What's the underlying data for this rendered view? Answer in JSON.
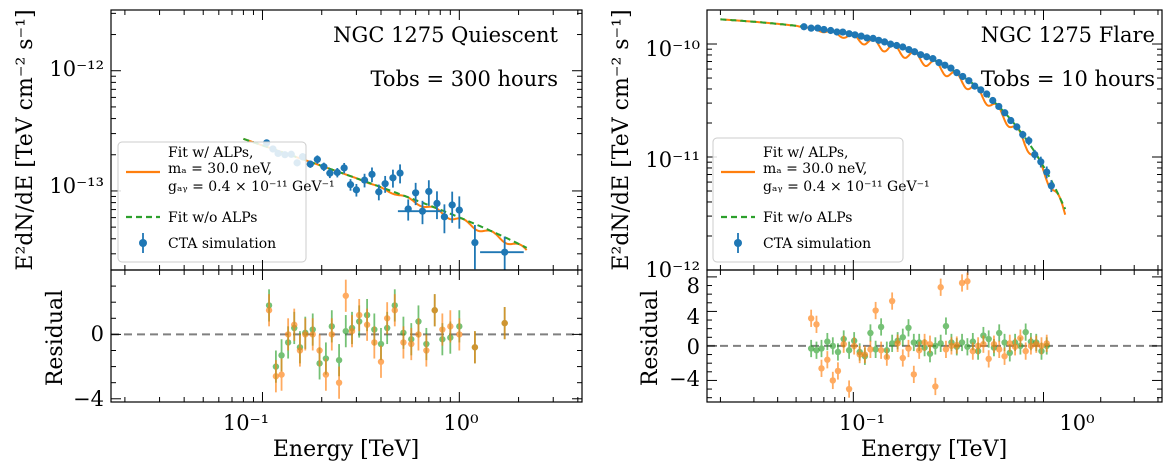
{
  "figure": {
    "x_label": "Energy [TeV]",
    "y_label_top": "E²dN/dE [TeV cm⁻² s⁻¹]",
    "y_label_bottom": "Residual",
    "x_tick_labels": [
      "10⁻¹",
      "10⁰"
    ]
  },
  "panels": [
    {
      "title": "NGC 1275 Quiescent",
      "tobs_label": "Tobs = 300 hours",
      "y_tick_labels": [
        "10⁻¹²",
        "10⁻¹³"
      ],
      "residual_tick_labels": [
        "0",
        "−4"
      ],
      "legend": {
        "alp_fit_lines": [
          "Fit w/ ALPs,",
          "mₐ = 30.0 neV,",
          "gₐᵧ = 0.4 × 10⁻¹¹ GeV⁻¹"
        ],
        "no_alp_fit": "Fit w/o ALPs",
        "simulation": "CTA simulation"
      }
    },
    {
      "title": "NGC 1275 Flare",
      "tobs_label": "Tobs = 10 hours",
      "y_tick_labels": [
        "10⁻¹⁰",
        "10⁻¹¹",
        "10⁻¹²"
      ],
      "residual_tick_labels": [
        "8",
        "4",
        "0",
        "−4"
      ],
      "legend": {
        "alp_fit_lines": [
          "Fit w/ ALPs,",
          "mₐ = 30.0 neV,",
          "gₐᵧ = 0.4 × 10⁻¹¹ GeV⁻¹"
        ],
        "no_alp_fit": "Fit w/o ALPs",
        "simulation": "CTA simulation"
      }
    }
  ],
  "colors": {
    "alp_fit": "#ff7f0e",
    "no_alp_fit": "#2ca02c",
    "simulation": "#1f77b4",
    "zero_line": "#808080"
  },
  "chart_data": [
    {
      "type": "scatter",
      "x_scale": "log",
      "y_scale": "log",
      "xlim": [
        0.017,
        4.2
      ],
      "ylim": [
        2.2e-14,
        3.2e-12
      ],
      "residual_ylim": [
        -4.2,
        4.0
      ],
      "model": {
        "norm": 1e-13,
        "e_ref": 0.5,
        "index": 2.55,
        "cutoff": 8.0
      },
      "alp_model": {
        "amplitude": 0.1,
        "oscillations": 3.0,
        "onset": 0.3
      },
      "x_range_curve": [
        0.08,
        2.2
      ],
      "series": [
        {
          "name": "CTA simulation",
          "x": [
            0.105,
            0.113,
            0.12,
            0.13,
            0.14,
            0.15,
            0.16,
            0.175,
            0.19,
            0.205,
            0.22,
            0.24,
            0.26,
            0.28,
            0.3,
            0.33,
            0.36,
            0.39,
            0.42,
            0.46,
            0.5,
            0.55,
            0.6,
            0.65,
            0.7,
            0.77,
            0.84,
            0.92,
            1.0,
            1.2,
            1.7
          ],
          "y_rel": [
            1.08,
            1.0,
            0.95,
            0.97,
            1.02,
            0.9,
            1.05,
            0.96,
            1.1,
            1.0,
            0.92,
            0.98,
            1.12,
            0.85,
            0.8,
            1.02,
            1.2,
            0.9,
            1.1,
            1.3,
            1.5,
            0.8,
            1.15,
            0.85,
            1.3,
            1.1,
            0.9,
            1.2,
            1.15,
            0.7,
            0.75
          ],
          "x_err": 0.04,
          "y_err_rel": [
            0.05,
            0.05,
            0.05,
            0.06,
            0.06,
            0.06,
            0.07,
            0.07,
            0.08,
            0.08,
            0.09,
            0.09,
            0.1,
            0.11,
            0.12,
            0.13,
            0.14,
            0.15,
            0.16,
            0.17,
            0.18,
            0.2,
            0.21,
            0.22,
            0.24,
            0.26,
            0.27,
            0.29,
            0.3,
            0.4,
            0.35
          ],
          "wide_bins": [
            0.65,
            1.7
          ]
        }
      ],
      "residuals": {
        "alp": {
          "x": [
            0.108,
            0.117,
            0.125,
            0.135,
            0.145,
            0.155,
            0.165,
            0.18,
            0.195,
            0.21,
            0.225,
            0.245,
            0.265,
            0.285,
            0.31,
            0.34,
            0.37,
            0.4,
            0.43,
            0.47,
            0.52,
            0.57,
            0.62,
            0.68,
            0.75,
            0.82,
            0.9,
            1.0,
            1.2,
            1.7
          ],
          "y": [
            1.5,
            -2.6,
            -2.5,
            0.0,
            0.6,
            -1.0,
            0.0,
            0.0,
            -1.0,
            -2.5,
            0.0,
            -3.0,
            2.4,
            0.2,
            1.2,
            0.6,
            -0.5,
            -1.7,
            1.0,
            1.5,
            -0.5,
            -0.6,
            0.0,
            -1.0,
            1.5,
            0.3,
            0.5,
            0.0,
            -0.8,
            0.7
          ]
        },
        "no_alp": {
          "x": [
            0.108,
            0.117,
            0.125,
            0.135,
            0.145,
            0.155,
            0.165,
            0.18,
            0.195,
            0.21,
            0.225,
            0.245,
            0.265,
            0.285,
            0.31,
            0.34,
            0.37,
            0.4,
            0.43,
            0.47,
            0.52,
            0.57,
            0.62,
            0.68,
            0.75,
            0.82,
            0.9,
            1.0,
            1.2,
            1.7
          ],
          "y": [
            1.8,
            -2.0,
            -1.3,
            -0.5,
            0.4,
            -0.8,
            0.1,
            0.3,
            -1.8,
            -1.5,
            0.5,
            -1.6,
            0.2,
            0.4,
            0.8,
            1.2,
            0.3,
            -0.6,
            0.4,
            1.8,
            0.1,
            -0.3,
            0.8,
            -0.6,
            1.5,
            -0.3,
            -0.2,
            0.5,
            -0.8,
            0.7
          ]
        },
        "y_err": 1.0
      }
    },
    {
      "type": "scatter",
      "x_scale": "log",
      "y_scale": "log",
      "xlim": [
        0.017,
        4.2
      ],
      "ylim": [
        1e-12,
        2e-10
      ],
      "residual_ylim": [
        -6.5,
        8.8
      ],
      "model": {
        "norm": 1.75e-10,
        "e_ref": 0.02,
        "index": 2.05,
        "cutoff": 0.35
      },
      "alp_model": {
        "amplitude": 0.18,
        "oscillations": 4.0,
        "onset": 0.05
      },
      "x_range_curve": [
        0.02,
        1.3
      ],
      "series": [
        {
          "name": "CTA simulation",
          "x": [
            0.055,
            0.06,
            0.065,
            0.07,
            0.076,
            0.082,
            0.088,
            0.095,
            0.102,
            0.11,
            0.118,
            0.127,
            0.136,
            0.146,
            0.157,
            0.169,
            0.182,
            0.196,
            0.21,
            0.226,
            0.243,
            0.262,
            0.282,
            0.303,
            0.326,
            0.35,
            0.376,
            0.405,
            0.435,
            0.468,
            0.503,
            0.541,
            0.582,
            0.626,
            0.673,
            0.724,
            0.778,
            0.837,
            0.9,
            0.968,
            1.04,
            1.1
          ],
          "y_rel": [
            1.0,
            0.99,
            1.01,
            1.0,
            1.0,
            0.99,
            1.01,
            1.0,
            1.0,
            1.0,
            0.99,
            1.01,
            1.0,
            1.0,
            0.99,
            1.0,
            1.01,
            1.0,
            1.0,
            0.99,
            1.0,
            1.02,
            1.0,
            1.01,
            1.02,
            1.0,
            1.0,
            1.0,
            0.98,
            1.0,
            1.02,
            1.0,
            1.0,
            1.0,
            0.98,
            1.0,
            1.0,
            1.05,
            0.95,
            1.0,
            1.0,
            0.9
          ],
          "x_err": 0.0,
          "y_err_rel": [
            0.02,
            0.02,
            0.02,
            0.02,
            0.02,
            0.02,
            0.02,
            0.02,
            0.02,
            0.02,
            0.02,
            0.02,
            0.02,
            0.02,
            0.02,
            0.02,
            0.02,
            0.02,
            0.02,
            0.02,
            0.02,
            0.02,
            0.02,
            0.02,
            0.02,
            0.02,
            0.02,
            0.03,
            0.03,
            0.03,
            0.04,
            0.04,
            0.05,
            0.05,
            0.06,
            0.07,
            0.08,
            0.09,
            0.1,
            0.11,
            0.12,
            0.12
          ],
          "wide_bins": []
        }
      ],
      "residuals": {
        "alp": {
          "x": [
            0.06,
            0.064,
            0.068,
            0.073,
            0.078,
            0.083,
            0.089,
            0.095,
            0.101,
            0.108,
            0.115,
            0.123,
            0.131,
            0.14,
            0.15,
            0.16,
            0.171,
            0.182,
            0.195,
            0.208,
            0.222,
            0.237,
            0.253,
            0.27,
            0.288,
            0.307,
            0.328,
            0.35,
            0.373,
            0.398,
            0.425,
            0.453,
            0.483,
            0.515,
            0.549,
            0.585,
            0.624,
            0.665,
            0.709,
            0.756,
            0.806,
            0.859,
            0.916,
            0.976,
            1.04
          ],
          "y": [
            3.2,
            2.5,
            -2.6,
            -1.6,
            -4.0,
            -2.9,
            0.2,
            -5.0,
            0.0,
            -1.0,
            -1.0,
            -0.4,
            4.1,
            -0.5,
            -1.3,
            5.2,
            0.3,
            -1.4,
            -0.3,
            -3.3,
            -0.5,
            0.4,
            0.2,
            -4.7,
            6.8,
            -0.4,
            0.0,
            0.1,
            7.3,
            7.5,
            -0.6,
            0.0,
            0.2,
            -1.5,
            0.2,
            -0.4,
            -1.2,
            0.3,
            -0.1,
            0.9,
            -0.6,
            0.0,
            0.2,
            0.0,
            0.3
          ]
        },
        "no_alp": {
          "x": [
            0.06,
            0.064,
            0.068,
            0.073,
            0.078,
            0.083,
            0.089,
            0.095,
            0.101,
            0.108,
            0.115,
            0.123,
            0.131,
            0.14,
            0.15,
            0.16,
            0.171,
            0.182,
            0.195,
            0.208,
            0.222,
            0.237,
            0.253,
            0.27,
            0.288,
            0.307,
            0.328,
            0.35,
            0.373,
            0.398,
            0.425,
            0.453,
            0.483,
            0.515,
            0.549,
            0.585,
            0.624,
            0.665,
            0.709,
            0.756,
            0.806,
            0.859,
            0.916,
            0.976,
            1.04
          ],
          "y": [
            -0.3,
            -0.5,
            -0.3,
            0.5,
            0.0,
            -0.7,
            0.8,
            -0.5,
            0.6,
            -0.7,
            -1.2,
            1.5,
            -0.4,
            2.2,
            -0.5,
            0.3,
            0.6,
            1.0,
            2.1,
            0.4,
            0.4,
            -0.2,
            -0.9,
            0.0,
            0.3,
            2.3,
            0.4,
            -0.1,
            0.4,
            -0.1,
            0.5,
            -0.6,
            1.2,
            0.8,
            -0.2,
            1.5,
            0.4,
            -0.8,
            0.4,
            0.0,
            1.6,
            0.5,
            0.4,
            -0.6,
            0.0
          ]
        },
        "y_err": 1.0
      }
    }
  ]
}
